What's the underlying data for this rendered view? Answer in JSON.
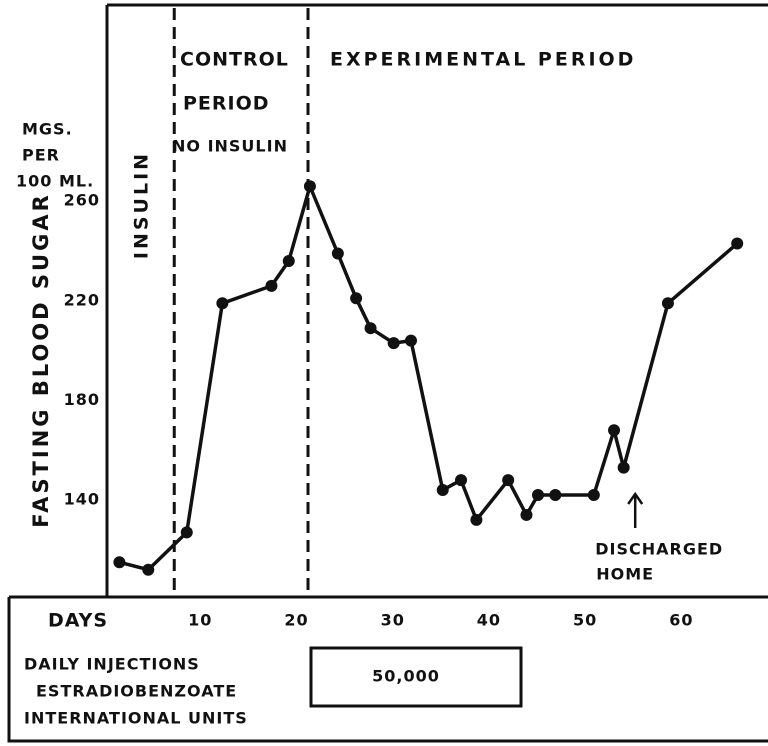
{
  "chart_data": {
    "type": "line",
    "y_label": "FASTING BLOOD SUGAR",
    "y_units": [
      "MGS.",
      "PER",
      "100 ML."
    ],
    "x_label": "DAYS",
    "x": [
      1.6,
      4.6,
      8.6,
      12.3,
      17.4,
      19.2,
      21.4,
      24.3,
      26.2,
      27.7,
      30.1,
      31.9,
      35.2,
      37.1,
      38.7,
      42.0,
      43.9,
      45.1,
      46.9,
      50.9,
      53.0,
      54.0,
      58.6,
      65.8
    ],
    "series": [
      {
        "color": "#111111",
        "values": [
          115,
          112,
          127,
          219,
          226,
          236,
          266,
          239,
          221,
          209,
          203,
          204,
          144,
          148,
          132,
          148,
          134,
          142,
          142,
          142,
          168,
          153,
          219,
          243
        ]
      }
    ],
    "xlim": [
      0,
      69
    ],
    "ylim": [
      100,
      340
    ],
    "xticks": [
      10,
      20,
      30,
      40,
      50,
      60
    ],
    "yticks": [
      140,
      180,
      220,
      260
    ],
    "dividers": [
      7.3,
      21.2
    ],
    "period_labels": {
      "insulin": "INSULIN",
      "control": [
        "CONTROL",
        "PERIOD"
      ],
      "no_insulin": "NO INSULIN",
      "experimental": "EXPERIMENTAL PERIOD"
    },
    "annotation": {
      "lines": [
        "DISCHARGED",
        "HOME"
      ],
      "x": 55.2
    },
    "injections": {
      "label": [
        "DAILY INJECTIONS",
        "ESTRADIOBENZOATE",
        "INTERNATIONAL UNITS"
      ],
      "dose": "50,000"
    }
  }
}
